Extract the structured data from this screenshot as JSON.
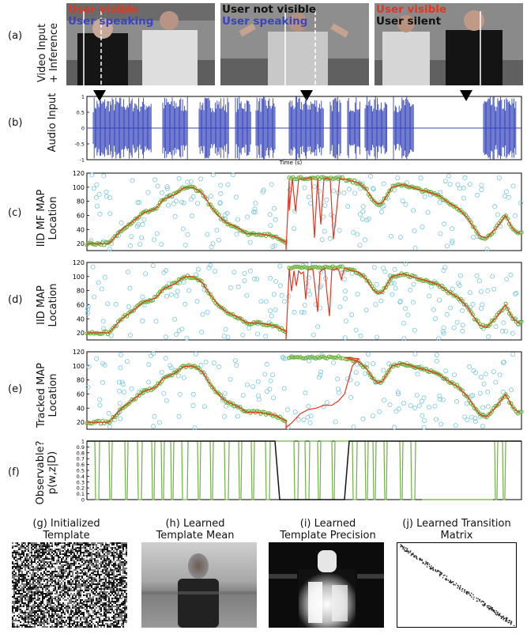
{
  "panels": {
    "a": {
      "label": "(a)",
      "ylabel_line1": "Video Input",
      "ylabel_line2": "+ Inference",
      "frames": [
        {
          "line1": "User visible",
          "line1_color": "#e8331e",
          "line2": "User speaking",
          "line2_color": "#3a44c4"
        },
        {
          "line1": "User not visible",
          "line1_color": "#111111",
          "line2": "User speaking",
          "line2_color": "#3a44c4"
        },
        {
          "line1": "User visible",
          "line1_color": "#e8331e",
          "line2": "User silent",
          "line2_color": "#111111"
        }
      ]
    },
    "b": {
      "label": "(b)",
      "ylabel": "Audio Input",
      "xlabel": "Time (s)"
    },
    "c": {
      "label": "(c)",
      "ylabel_line1": "IID MF MAP",
      "ylabel_line2": "Location"
    },
    "d": {
      "label": "(d)",
      "ylabel_line1": "IID MAP",
      "ylabel_line2": "Location"
    },
    "e": {
      "label": "(e)",
      "ylabel_line1": "Tracked MAP",
      "ylabel_line2": "Location"
    },
    "f": {
      "label": "(f)",
      "ylabel_line1": "Observable?",
      "ylabel_line2": "p(w,z|D)"
    },
    "bottom": [
      {
        "label": "(g) Initialized",
        "label2": "Template"
      },
      {
        "label": "(h) Learned",
        "label2": "Template Mean"
      },
      {
        "label": "(i) Learned",
        "label2": "Template Precision"
      },
      {
        "label": "(j) Learned Transition",
        "label2": "Matrix"
      }
    ]
  },
  "colors": {
    "audio": "#3344bb",
    "track": "#e8331e",
    "green": "#6db33f",
    "cyan": "#7cc8dc",
    "observable": "#111111"
  },
  "chart_data": [
    {
      "type": "line",
      "name": "audio",
      "xlabel": "Time (s)",
      "ylim": [
        -1,
        1
      ],
      "yticks": [
        -1,
        -0.5,
        0,
        0.5,
        1
      ]
    },
    {
      "type": "scatter",
      "name": "iid-mf-map",
      "ylim": [
        10,
        120
      ],
      "yticks": [
        20,
        40,
        60,
        80,
        100,
        120
      ]
    },
    {
      "type": "scatter",
      "name": "iid-map",
      "ylim": [
        10,
        120
      ],
      "yticks": [
        20,
        40,
        60,
        80,
        100,
        120
      ]
    },
    {
      "type": "scatter",
      "name": "tracked-map",
      "ylim": [
        10,
        120
      ],
      "yticks": [
        20,
        40,
        60,
        80,
        100,
        120
      ]
    },
    {
      "type": "line",
      "name": "observable",
      "ylim": [
        0,
        1
      ],
      "yticks": [
        0,
        0.1,
        0.2,
        0.3,
        0.4,
        0.5,
        0.6,
        0.7,
        0.8,
        0.9,
        1
      ]
    }
  ]
}
